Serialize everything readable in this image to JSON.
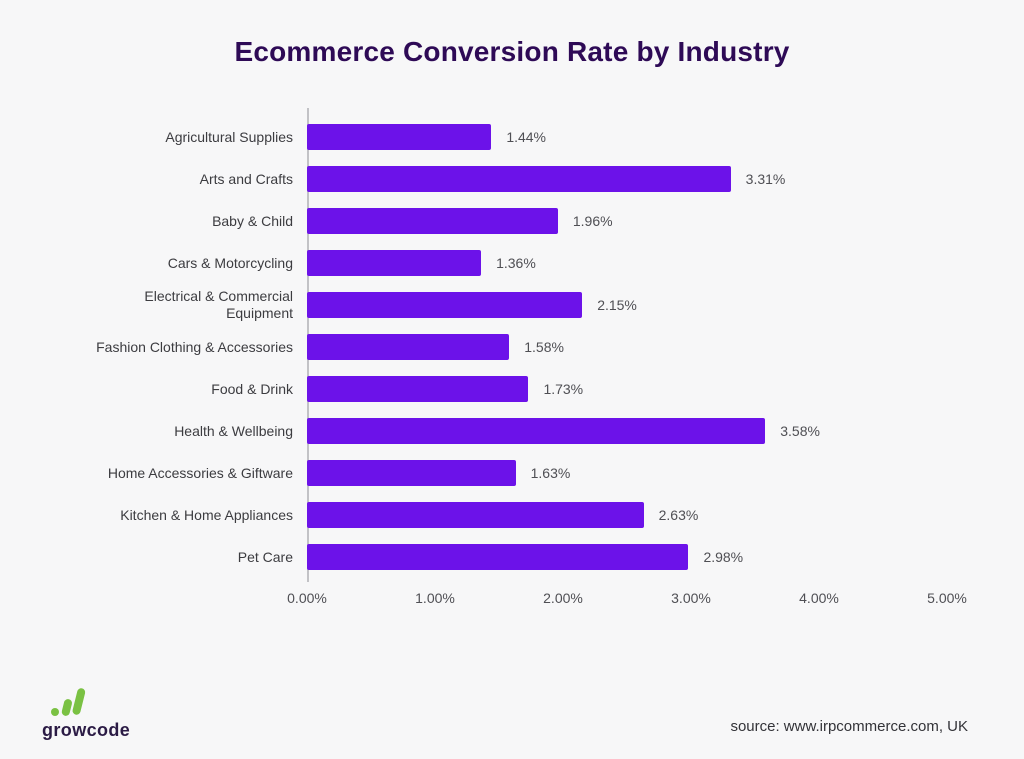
{
  "title": "Ecommerce Conversion Rate by Industry",
  "footer": {
    "logo_text": "growcode",
    "source": "source: www.irpcommerce.com, UK"
  },
  "colors": {
    "bar": "#6C12E9",
    "title": "#2E0A56",
    "logo_green": "#7AC143",
    "logo_text": "#2B1B45",
    "axis_line": "#C2C2C6"
  },
  "chart_data": {
    "type": "bar",
    "orientation": "horizontal",
    "title": "Ecommerce Conversion Rate by Industry",
    "categories": [
      "Agricultural Supplies",
      "Arts and Crafts",
      "Baby & Child",
      "Cars & Motorcycling",
      "Electrical & Commercial Equipment",
      "Fashion Clothing & Accessories",
      "Food & Drink",
      "Health & Wellbeing",
      "Home Accessories & Giftware",
      "Kitchen & Home Appliances",
      "Pet Care"
    ],
    "values": [
      1.44,
      3.31,
      1.96,
      1.36,
      2.15,
      1.58,
      1.73,
      3.58,
      1.63,
      2.63,
      2.98
    ],
    "value_labels": [
      "1.44%",
      "3.31%",
      "1.96%",
      "1.36%",
      "2.15%",
      "1.58%",
      "1.73%",
      "3.58%",
      "1.63%",
      "2.63%",
      "2.98%"
    ],
    "xlim": [
      0,
      5
    ],
    "x_ticks": [
      "0.00%",
      "1.00%",
      "2.00%",
      "3.00%",
      "4.00%",
      "5.00%"
    ],
    "xlabel": "",
    "ylabel": "",
    "grid": false,
    "legend": false,
    "source": "www.irpcommerce.com, UK"
  }
}
